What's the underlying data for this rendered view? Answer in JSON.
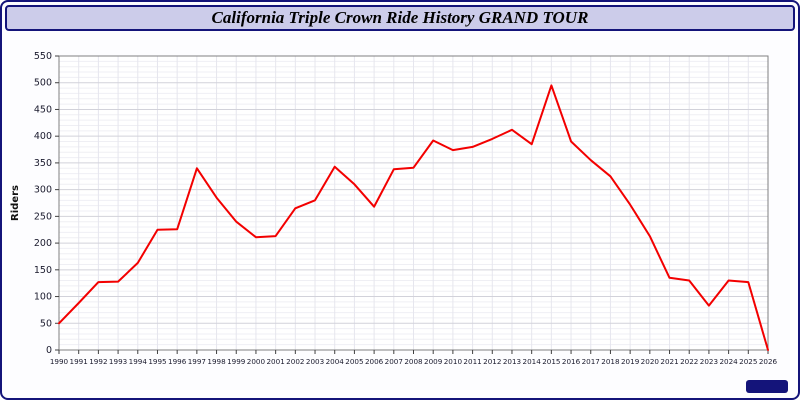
{
  "window": {
    "border_color": "#14147a",
    "corner_badge_color": "#14147a"
  },
  "title_bar": {
    "bg_color": "#ccccea",
    "border_color": "#14147a"
  },
  "chart_data": {
    "type": "line",
    "title": "California Triple Crown Ride History GRAND TOUR",
    "xlabel": "",
    "ylabel": "Riders",
    "x": [
      1990,
      1991,
      1992,
      1993,
      1994,
      1995,
      1996,
      1997,
      1998,
      1999,
      2000,
      2001,
      2002,
      2003,
      2004,
      2005,
      2006,
      2007,
      2008,
      2009,
      2010,
      2011,
      2012,
      2013,
      2014,
      2015,
      2016,
      2017,
      2018,
      2019,
      2020,
      2021,
      2022,
      2023,
      2024,
      2025,
      2026
    ],
    "values": [
      50,
      88,
      127,
      128,
      163,
      225,
      226,
      340,
      285,
      240,
      211,
      213,
      265,
      280,
      343,
      310,
      268,
      338,
      341,
      392,
      374,
      380,
      395,
      412,
      385,
      495,
      390,
      355,
      325,
      272,
      213,
      135,
      130,
      83,
      130,
      127,
      0
    ],
    "ylim": [
      0,
      550
    ],
    "ytick_step": 50,
    "minor_step": 10,
    "line_color": "#f30000",
    "grid": true,
    "legend_position": "none",
    "major_grid_color": "#d2d2da",
    "minor_grid_color": "#efeff4",
    "vgrid_color": "#e6e6ee",
    "axis_color": "#808080",
    "tick_label_color": "#1b1b2e",
    "plot_bg": "#ffffff"
  }
}
